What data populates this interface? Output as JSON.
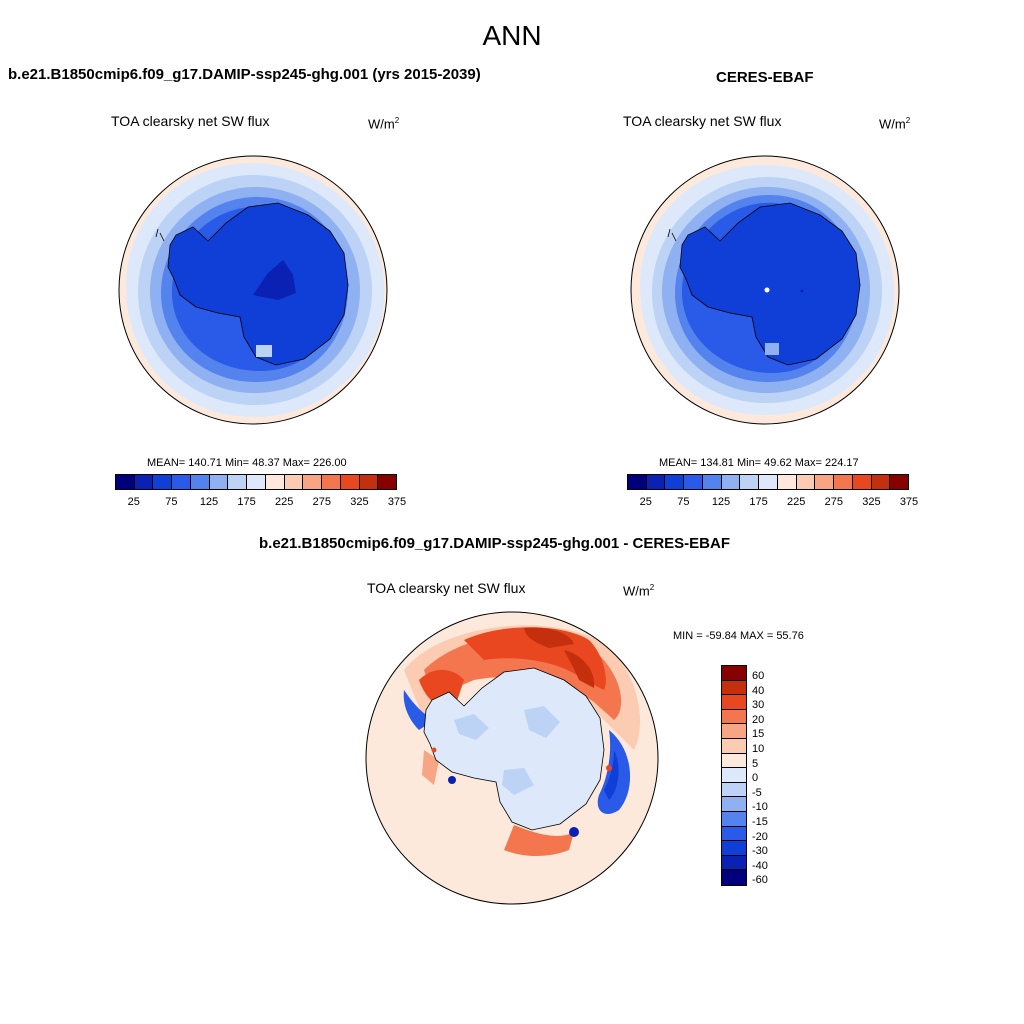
{
  "season": "ANN",
  "panels": {
    "test": {
      "title": "b.e21.B1850cmip6.f09_g17.DAMIP-ssp245-ghg.001 (yrs 2015-2039)",
      "variable": "TOA clearsky net SW flux",
      "units_base": "W/m",
      "units_exp": "2",
      "stats": "MEAN= 140.71  Min=  48.37  Max= 226.00"
    },
    "ref": {
      "title": "CERES-EBAF",
      "variable": "TOA clearsky net SW flux",
      "units_base": "W/m",
      "units_exp": "2",
      "stats": "MEAN= 134.81  Min=  49.62  Max= 224.17"
    },
    "diff": {
      "title": "b.e21.B1850cmip6.f09_g17.DAMIP-ssp245-ghg.001 - CERES-EBAF",
      "variable": "TOA clearsky net SW flux",
      "units_base": "W/m",
      "units_exp": "2",
      "stats": "MIN = -59.84 MAX =  55.76"
    }
  },
  "abs_colorbar": {
    "tick_labels": [
      "25",
      "75",
      "125",
      "175",
      "225",
      "275",
      "325",
      "375"
    ],
    "colors": [
      "#00007e",
      "#0a21b3",
      "#0f3fd6",
      "#2a5ae8",
      "#5483ee",
      "#8fb1f2",
      "#bcd3f6",
      "#dde9fa",
      "#fde9dc",
      "#fbcbb2",
      "#f7a584",
      "#f3764f",
      "#e8471f",
      "#c42f0e",
      "#870000"
    ]
  },
  "diff_colorbar": {
    "labels": [
      "60",
      "40",
      "30",
      "20",
      "15",
      "10",
      "5",
      "0",
      "-5",
      "-10",
      "-15",
      "-20",
      "-30",
      "-40",
      "-60"
    ],
    "colors": [
      "#870000",
      "#c42f0e",
      "#e8471f",
      "#f3764f",
      "#f7a584",
      "#fbcbb2",
      "#fde9dc",
      "#dde9fa",
      "#bcd3f6",
      "#8fb1f2",
      "#5483ee",
      "#2a5ae8",
      "#0f3fd6",
      "#0a21b3",
      "#00007e"
    ]
  }
}
